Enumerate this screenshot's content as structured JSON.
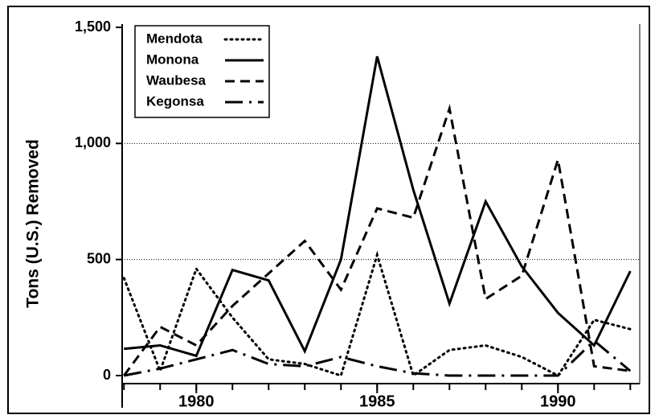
{
  "chart_data": {
    "type": "line",
    "y_label": "Tons (U.S.) Removed",
    "x": [
      1978,
      1979,
      1980,
      1981,
      1982,
      1983,
      1984,
      1985,
      1986,
      1987,
      1988,
      1989,
      1990,
      1991,
      1992
    ],
    "series": [
      {
        "name": "Mendota",
        "color": "#000000",
        "style": "dotted",
        "values": [
          420,
          20,
          460,
          250,
          70,
          50,
          0,
          520,
          0,
          110,
          130,
          80,
          0,
          240,
          200
        ]
      },
      {
        "name": "Monona",
        "color": "#000000",
        "style": "solid",
        "values": [
          115,
          130,
          85,
          455,
          410,
          105,
          500,
          1375,
          800,
          310,
          750,
          470,
          270,
          130,
          450
        ]
      },
      {
        "name": "Waubesa",
        "color": "#000000",
        "style": "dashed",
        "values": [
          0,
          210,
          130,
          300,
          440,
          580,
          370,
          720,
          680,
          1150,
          330,
          430,
          930,
          40,
          20
        ]
      },
      {
        "name": "Kegonsa",
        "color": "#000000",
        "style": "dashdot",
        "values": [
          0,
          30,
          70,
          110,
          50,
          40,
          80,
          40,
          10,
          0,
          0,
          0,
          0,
          150,
          20
        ]
      }
    ],
    "xlim": [
      1977.95,
      1992.26
    ],
    "ylim": [
      0,
      1500
    ],
    "xticks": [
      1980,
      1985,
      1990
    ],
    "yticks": [
      0,
      {
        "value": 500,
        "label": "500"
      },
      {
        "value": 1000,
        "label": "1,000"
      },
      {
        "value": 1500,
        "label": "1,500"
      }
    ],
    "grid": true,
    "legend": "upper left"
  }
}
